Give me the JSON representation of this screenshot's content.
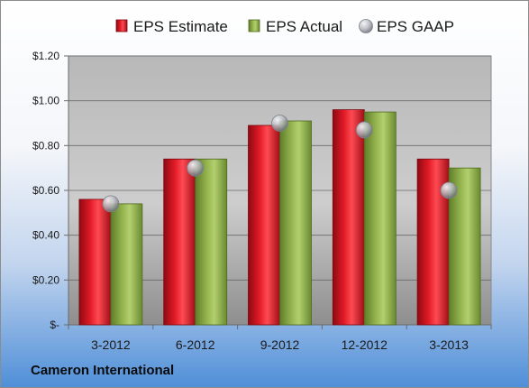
{
  "footer": {
    "company": "Cameron International"
  },
  "chart_data": {
    "type": "bar",
    "categories": [
      "3-2012",
      "6-2012",
      "9-2012",
      "12-2012",
      "3-2013"
    ],
    "series": [
      {
        "name": "EPS Estimate",
        "kind": "bar",
        "color": "#d9121f",
        "values": [
          0.56,
          0.74,
          0.89,
          0.96,
          0.74
        ]
      },
      {
        "name": "EPS Actual",
        "kind": "bar",
        "color": "#8fb04a",
        "values": [
          0.54,
          0.74,
          0.91,
          0.95,
          0.7
        ]
      },
      {
        "name": "EPS GAAP",
        "kind": "marker",
        "color": "#b8bcc2",
        "values": [
          0.54,
          0.7,
          0.9,
          0.87,
          0.6
        ]
      }
    ],
    "ylim": [
      0,
      1.2
    ],
    "yticks": [
      {
        "value": 0,
        "label": "$-"
      },
      {
        "value": 0.2,
        "label": "$0.20"
      },
      {
        "value": 0.4,
        "label": "$0.40"
      },
      {
        "value": 0.6,
        "label": "$0.60"
      },
      {
        "value": 0.8,
        "label": "$0.80"
      },
      {
        "value": 1.0,
        "label": "$1.00"
      },
      {
        "value": 1.2,
        "label": "$1.20"
      }
    ],
    "grid": true,
    "legend": "top"
  }
}
